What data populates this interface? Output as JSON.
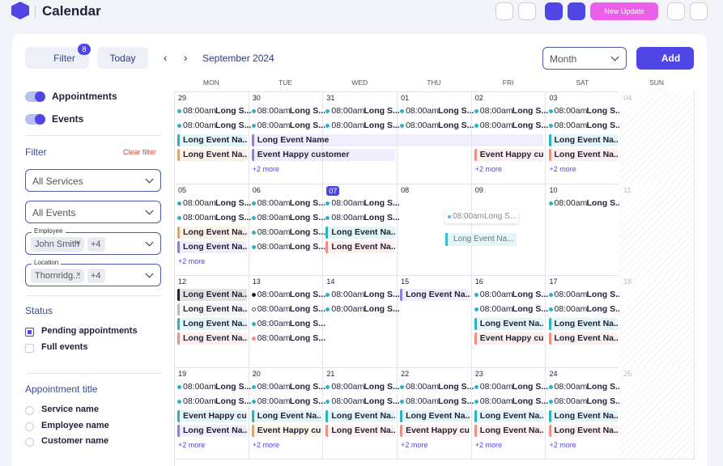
{
  "header": {
    "title": "Calendar",
    "update": "New Update"
  },
  "toolbar": {
    "filter": "Filter",
    "filter_count": "8",
    "today": "Today",
    "month_label": "September 2024",
    "view": "Month",
    "add": "Add"
  },
  "sidebar": {
    "toggles": [
      "Appointments",
      "Events"
    ],
    "filter_title": "Filter",
    "clear": "Clear filter",
    "services": "All Services",
    "events": "All Events",
    "employee": {
      "label": "Employee",
      "chip": "John Smith",
      "more": "+4"
    },
    "location": {
      "label": "Location",
      "chip": "Thornridg...",
      "more": "+4"
    },
    "status_title": "Status",
    "status": [
      "Pending appointments",
      "Full events"
    ],
    "appt_title": "Appointment title",
    "options": [
      "Service name",
      "Employee name",
      "Customer name"
    ]
  },
  "calendar": {
    "weekdays": [
      "MON",
      "TUE",
      "WED",
      "THU",
      "FRI",
      "SAT",
      "SUN"
    ],
    "drag": [
      {
        "time": "08:00am",
        "text": "Long S..."
      },
      {
        "text": "Long Event Na...",
        "color": "#2ab3c6"
      }
    ],
    "weeks": [
      [
        {
          "day": "29",
          "items": [
            {
              "time": "08:00am",
              "text": "Long S...",
              "color": "#2ab3c6"
            },
            {
              "time": "08:00am",
              "text": "Long S...",
              "color": "#2ab3c6"
            },
            {
              "text": "Long Event Na...",
              "color": "#2ab3c6"
            },
            {
              "text": "Long Event Na...",
              "color": "#f0a050"
            }
          ]
        },
        {
          "day": "30",
          "items": [
            {
              "time": "08:00am",
              "text": "Long S...",
              "color": "#2ab3c6"
            },
            {
              "time": "08:00am",
              "text": "Long S...",
              "color": "#2ab3c6"
            },
            {
              "text": "Long Event Name",
              "color": "#8b7ee8",
              "span": 4
            },
            {
              "text": "Event Happy customer",
              "color": "#8b7ee8",
              "span": 2
            }
          ],
          "more": "+2 more"
        },
        {
          "day": "31",
          "items": [
            {
              "time": "08:00am",
              "text": "Long S...",
              "color": "#2ab3c6"
            },
            {
              "time": "08:00am",
              "text": "Long S...",
              "color": "#2ab3c6"
            }
          ]
        },
        {
          "day": "01",
          "items": [
            {
              "time": "08:00am",
              "text": "Long S...",
              "color": "#2ab3c6"
            },
            {
              "time": "08:00am",
              "text": "Long S...",
              "color": "#2ab3c6"
            }
          ]
        },
        {
          "day": "02",
          "items": [
            {
              "time": "08:00am",
              "text": "Long S...",
              "color": "#2ab3c6"
            },
            {
              "time": "08:00am",
              "text": "Long S...",
              "color": "#2ab3c6"
            },
            null,
            {
              "text": "Event Happy cu...",
              "color": "#ef8f80"
            }
          ],
          "more": "+2 more"
        },
        {
          "day": "03",
          "items": [
            {
              "time": "08:00am",
              "text": "Long S...",
              "color": "#2ab3c6"
            },
            {
              "time": "08:00am",
              "text": "Long S...",
              "color": "#2ab3c6"
            },
            {
              "text": "Long Event Na...",
              "color": "#2ab3c6"
            },
            {
              "text": "Long Event Na...",
              "color": "#ef8f80"
            }
          ],
          "more": "+2 more"
        },
        {
          "day": "04",
          "items": [],
          "muted": true
        }
      ],
      [
        {
          "day": "05",
          "items": [
            {
              "time": "08:00am",
              "text": "Long S...",
              "color": "#2ab3c6"
            },
            {
              "time": "08:00am",
              "text": "Long S...",
              "color": "#2ab3c6"
            },
            {
              "text": "Long Event Na...",
              "color": "#f0a050"
            },
            {
              "text": "Long Event Na...",
              "color": "#8b7ee8"
            }
          ],
          "more": "+2 more"
        },
        {
          "day": "06",
          "items": [
            {
              "time": "08:00am",
              "text": "Long S...",
              "color": "#2ab3c6"
            },
            {
              "time": "08:00am",
              "text": "Long S...",
              "color": "#2ab3c6"
            },
            {
              "time": "08:00am",
              "text": "Long S...",
              "color": "#2ab3c6"
            },
            {
              "time": "08:00am",
              "text": "Long S...",
              "color": "#2ab3c6"
            }
          ]
        },
        {
          "day": "07",
          "today": true,
          "items": [
            {
              "time": "08:00am",
              "text": "Long S...",
              "color": "#2ab3c6"
            },
            {
              "time": "08:00am",
              "text": "Long S...",
              "color": "#2ab3c6"
            },
            {
              "text": "Long Event Na...",
              "color": "#2ab3c6"
            },
            {
              "text": "Long Event Na...",
              "color": "#ef8f80"
            }
          ]
        },
        {
          "day": "08",
          "items": []
        },
        {
          "day": "09",
          "items": []
        },
        {
          "day": "10",
          "items": [
            {
              "time": "08:00am",
              "text": "Long S...",
              "color": "#2ab3c6"
            }
          ]
        },
        {
          "day": "11",
          "items": [],
          "muted": true
        }
      ],
      [
        {
          "day": "12",
          "items": [
            {
              "text": "Long Event Na...",
              "color": "#222222"
            },
            {
              "text": "Long Event Na...",
              "color": "#bbbbbb"
            },
            {
              "text": "Long Event Na...",
              "color": "#2ab3c6"
            },
            {
              "text": "Long Event Na...",
              "color": "#ef8f80"
            }
          ]
        },
        {
          "day": "13",
          "items": [
            {
              "time": "08:00am",
              "text": "Long S...",
              "color": "#222222"
            },
            {
              "time": "08:00am",
              "text": "Long S...",
              "color": "#ffffff"
            },
            {
              "time": "08:00am",
              "text": "Long S...",
              "color": "#2ab3c6"
            },
            {
              "time": "08:00am",
              "text": "Long S...",
              "color": "#ef8f80"
            }
          ]
        },
        {
          "day": "14",
          "items": [
            {
              "time": "08:00am",
              "text": "Long S...",
              "color": "#2ab3c6"
            },
            {
              "time": "08:00am",
              "text": "Long S...",
              "color": "#2ab3c6"
            }
          ]
        },
        {
          "day": "15",
          "items": [
            {
              "text": "Long Event Na...",
              "color": "#8b7ee8"
            }
          ]
        },
        {
          "day": "16",
          "items": [
            {
              "time": "08:00am",
              "text": "Long S...",
              "color": "#2ab3c6"
            },
            {
              "time": "08:00am",
              "text": "Long S...",
              "color": "#2ab3c6"
            },
            {
              "text": "Long Event Na...",
              "color": "#2ab3c6"
            },
            {
              "text": "Event Happy cu...",
              "color": "#ef8f80"
            }
          ]
        },
        {
          "day": "17",
          "items": [
            {
              "time": "08:00am",
              "text": "Long S...",
              "color": "#2ab3c6"
            },
            {
              "time": "08:00am",
              "text": "Long S...",
              "color": "#2ab3c6"
            },
            {
              "text": "Long Event Na...",
              "color": "#2ab3c6"
            },
            {
              "text": "Long Event Na...",
              "color": "#ef8f80"
            }
          ]
        },
        {
          "day": "18",
          "items": [],
          "muted": true
        }
      ],
      [
        {
          "day": "19",
          "items": [
            {
              "time": "08:00am",
              "text": "Long S...",
              "color": "#2ab3c6"
            },
            {
              "time": "08:00am",
              "text": "Long S...",
              "color": "#2ab3c6"
            },
            {
              "text": "Event Happy cu...",
              "color": "#2ab3c6"
            },
            {
              "text": "Long Event Na...",
              "color": "#8b7ee8"
            }
          ],
          "more": "+2 more"
        },
        {
          "day": "20",
          "items": [
            {
              "time": "08:00am",
              "text": "Long S...",
              "color": "#2ab3c6"
            },
            {
              "time": "08:00am",
              "text": "Long S...",
              "color": "#2ab3c6"
            },
            {
              "text": "Long Event Na...",
              "color": "#2ab3c6"
            },
            {
              "text": "Event Happy cu...",
              "color": "#f0a050"
            }
          ],
          "more": "+2 more"
        },
        {
          "day": "21",
          "items": [
            {
              "time": "08:00am",
              "text": "Long S...",
              "color": "#2ab3c6"
            },
            {
              "time": "08:00am",
              "text": "Long S...",
              "color": "#2ab3c6"
            },
            {
              "text": "Long Event Na...",
              "color": "#2ab3c6"
            },
            {
              "text": "Long Event Na...",
              "color": "#ef8f80"
            }
          ]
        },
        {
          "day": "22",
          "items": [
            {
              "time": "08:00am",
              "text": "Long S...",
              "color": "#2ab3c6"
            },
            {
              "time": "08:00am",
              "text": "Long S...",
              "color": "#2ab3c6"
            },
            {
              "text": "Long Event Na...",
              "color": "#2ab3c6"
            },
            {
              "text": "Event Happy cu...",
              "color": "#ef8f80"
            }
          ],
          "more": "+2 more"
        },
        {
          "day": "23",
          "items": [
            {
              "time": "08:00am",
              "text": "Long S...",
              "color": "#2ab3c6"
            },
            {
              "time": "08:00am",
              "text": "Long S...",
              "color": "#2ab3c6"
            },
            {
              "text": "Long Event Na...",
              "color": "#2ab3c6"
            },
            {
              "text": "Long Event Na...",
              "color": "#ef8f80"
            }
          ],
          "more": "+2 more"
        },
        {
          "day": "24",
          "items": [
            {
              "time": "08:00am",
              "text": "Long S...",
              "color": "#2ab3c6"
            },
            {
              "time": "08:00am",
              "text": "Long S...",
              "color": "#2ab3c6"
            },
            {
              "text": "Long Event Na...",
              "color": "#2ab3c6"
            },
            {
              "text": "Long Event Na...",
              "color": "#ef8f80"
            }
          ],
          "more": "+2 more"
        },
        {
          "day": "25",
          "items": [],
          "muted": true
        }
      ]
    ]
  }
}
